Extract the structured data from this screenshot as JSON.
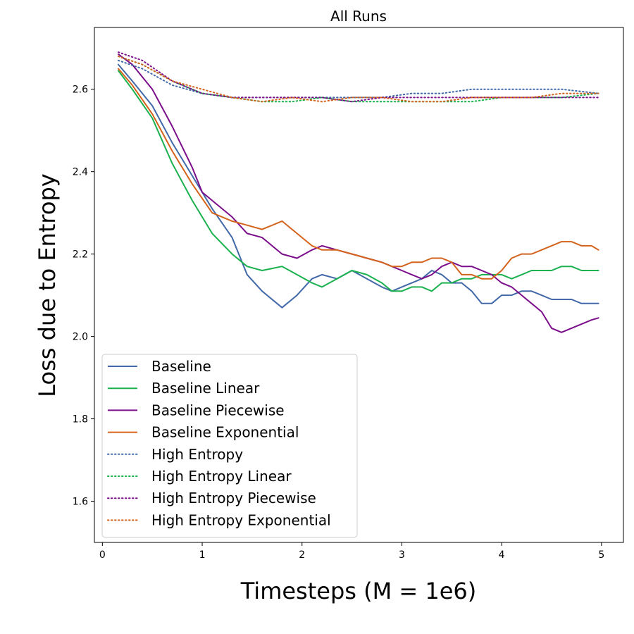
{
  "chart_data": {
    "type": "line",
    "title": "All Runs",
    "xlabel": "Timesteps (M = 1e6)",
    "ylabel": "Loss due to Entropy",
    "xlim": [
      -0.08,
      5.22
    ],
    "ylim": [
      1.5,
      2.75
    ],
    "xticks": [
      "0",
      "1",
      "2",
      "3",
      "4",
      "5"
    ],
    "yticks": [
      "1.6",
      "1.8",
      "2.0",
      "2.2",
      "2.4",
      "2.6"
    ],
    "grid": false,
    "legend_position": "lower-left",
    "series": [
      {
        "name": "Baseline",
        "color": "#4169a8",
        "style": "solid",
        "x": [
          0.16,
          0.3,
          0.5,
          0.7,
          0.9,
          1.1,
          1.3,
          1.45,
          1.6,
          1.8,
          1.95,
          2.1,
          2.2,
          2.35,
          2.5,
          2.65,
          2.8,
          2.9,
          3.0,
          3.1,
          3.2,
          3.3,
          3.4,
          3.5,
          3.6,
          3.7,
          3.8,
          3.9,
          4.0,
          4.1,
          4.2,
          4.3,
          4.4,
          4.5,
          4.6,
          4.7,
          4.8,
          4.9,
          4.97
        ],
        "y": [
          2.66,
          2.62,
          2.56,
          2.47,
          2.39,
          2.31,
          2.24,
          2.15,
          2.11,
          2.07,
          2.1,
          2.14,
          2.15,
          2.14,
          2.16,
          2.14,
          2.12,
          2.11,
          2.12,
          2.13,
          2.14,
          2.16,
          2.15,
          2.13,
          2.13,
          2.11,
          2.08,
          2.08,
          2.1,
          2.1,
          2.11,
          2.11,
          2.1,
          2.09,
          2.09,
          2.09,
          2.08,
          2.08,
          2.08
        ]
      },
      {
        "name": "Baseline Linear",
        "color": "#1ab14e",
        "style": "solid",
        "x": [
          0.16,
          0.3,
          0.5,
          0.7,
          0.9,
          1.1,
          1.3,
          1.45,
          1.6,
          1.8,
          1.95,
          2.1,
          2.2,
          2.35,
          2.5,
          2.65,
          2.8,
          2.9,
          3.0,
          3.1,
          3.2,
          3.3,
          3.4,
          3.5,
          3.6,
          3.7,
          3.8,
          3.9,
          4.0,
          4.1,
          4.2,
          4.3,
          4.4,
          4.5,
          4.6,
          4.7,
          4.8,
          4.9,
          4.97
        ],
        "y": [
          2.645,
          2.6,
          2.53,
          2.42,
          2.33,
          2.25,
          2.2,
          2.17,
          2.16,
          2.17,
          2.15,
          2.13,
          2.12,
          2.14,
          2.16,
          2.15,
          2.13,
          2.11,
          2.11,
          2.12,
          2.12,
          2.11,
          2.13,
          2.13,
          2.14,
          2.14,
          2.15,
          2.15,
          2.15,
          2.14,
          2.15,
          2.16,
          2.16,
          2.16,
          2.17,
          2.17,
          2.16,
          2.16,
          2.16
        ]
      },
      {
        "name": "Baseline Piecewise",
        "color": "#7b0e8a",
        "style": "solid",
        "x": [
          0.16,
          0.3,
          0.5,
          0.7,
          0.9,
          1.0,
          1.1,
          1.3,
          1.45,
          1.6,
          1.8,
          1.95,
          2.1,
          2.2,
          2.35,
          2.5,
          2.65,
          2.8,
          2.9,
          3.0,
          3.1,
          3.2,
          3.3,
          3.4,
          3.5,
          3.6,
          3.7,
          3.8,
          3.9,
          4.0,
          4.1,
          4.2,
          4.3,
          4.4,
          4.5,
          4.6,
          4.7,
          4.8,
          4.9,
          4.97
        ],
        "y": [
          2.685,
          2.66,
          2.6,
          2.51,
          2.41,
          2.35,
          2.33,
          2.29,
          2.25,
          2.24,
          2.2,
          2.19,
          2.21,
          2.22,
          2.21,
          2.2,
          2.19,
          2.18,
          2.17,
          2.16,
          2.15,
          2.14,
          2.15,
          2.17,
          2.18,
          2.17,
          2.17,
          2.16,
          2.15,
          2.13,
          2.12,
          2.1,
          2.08,
          2.06,
          2.02,
          2.01,
          2.02,
          2.03,
          2.04,
          2.045
        ]
      },
      {
        "name": "Baseline Exponential",
        "color": "#d4631c",
        "style": "solid",
        "x": [
          0.16,
          0.3,
          0.5,
          0.7,
          0.9,
          1.1,
          1.3,
          1.45,
          1.6,
          1.8,
          1.95,
          2.1,
          2.2,
          2.35,
          2.5,
          2.65,
          2.8,
          2.9,
          3.0,
          3.1,
          3.2,
          3.3,
          3.4,
          3.5,
          3.6,
          3.7,
          3.8,
          3.9,
          4.0,
          4.1,
          4.2,
          4.3,
          4.4,
          4.5,
          4.6,
          4.7,
          4.8,
          4.9,
          4.97
        ],
        "y": [
          2.65,
          2.61,
          2.54,
          2.45,
          2.37,
          2.3,
          2.28,
          2.27,
          2.26,
          2.28,
          2.25,
          2.22,
          2.21,
          2.21,
          2.2,
          2.19,
          2.18,
          2.17,
          2.17,
          2.18,
          2.18,
          2.19,
          2.19,
          2.18,
          2.15,
          2.15,
          2.14,
          2.14,
          2.16,
          2.19,
          2.2,
          2.2,
          2.21,
          2.22,
          2.23,
          2.23,
          2.22,
          2.22,
          2.21
        ]
      },
      {
        "name": "High Entropy",
        "color": "#4169a8",
        "style": "dotted",
        "x": [
          0.16,
          0.4,
          0.7,
          1.0,
          1.3,
          1.6,
          1.9,
          2.2,
          2.5,
          2.8,
          3.1,
          3.4,
          3.7,
          4.0,
          4.3,
          4.6,
          4.97
        ],
        "y": [
          2.67,
          2.65,
          2.61,
          2.59,
          2.58,
          2.58,
          2.58,
          2.58,
          2.58,
          2.58,
          2.59,
          2.59,
          2.6,
          2.6,
          2.6,
          2.6,
          2.59
        ]
      },
      {
        "name": "High Entropy Linear",
        "color": "#1ab14e",
        "style": "dotted",
        "x": [
          0.16,
          0.4,
          0.7,
          1.0,
          1.3,
          1.6,
          1.9,
          2.2,
          2.5,
          2.8,
          3.1,
          3.4,
          3.7,
          4.0,
          4.3,
          4.6,
          4.97
        ],
        "y": [
          2.68,
          2.66,
          2.62,
          2.59,
          2.58,
          2.57,
          2.57,
          2.58,
          2.57,
          2.57,
          2.57,
          2.57,
          2.57,
          2.58,
          2.58,
          2.58,
          2.59
        ]
      },
      {
        "name": "High Entropy Piecewise",
        "color": "#7b0e8a",
        "style": "dotted",
        "x": [
          0.16,
          0.4,
          0.7,
          1.0,
          1.3,
          1.6,
          1.9,
          2.2,
          2.5,
          2.8,
          3.1,
          3.4,
          3.7,
          4.0,
          4.3,
          4.6,
          4.97
        ],
        "y": [
          2.69,
          2.67,
          2.62,
          2.59,
          2.58,
          2.58,
          2.58,
          2.58,
          2.57,
          2.58,
          2.58,
          2.58,
          2.58,
          2.58,
          2.58,
          2.58,
          2.58
        ]
      },
      {
        "name": "High Entropy Exponential",
        "color": "#d4631c",
        "style": "dotted",
        "x": [
          0.16,
          0.4,
          0.7,
          1.0,
          1.3,
          1.6,
          1.9,
          2.2,
          2.5,
          2.8,
          3.1,
          3.4,
          3.7,
          4.0,
          4.3,
          4.6,
          4.97
        ],
        "y": [
          2.68,
          2.66,
          2.62,
          2.6,
          2.58,
          2.57,
          2.58,
          2.57,
          2.58,
          2.58,
          2.57,
          2.57,
          2.58,
          2.58,
          2.58,
          2.59,
          2.59
        ]
      }
    ]
  }
}
